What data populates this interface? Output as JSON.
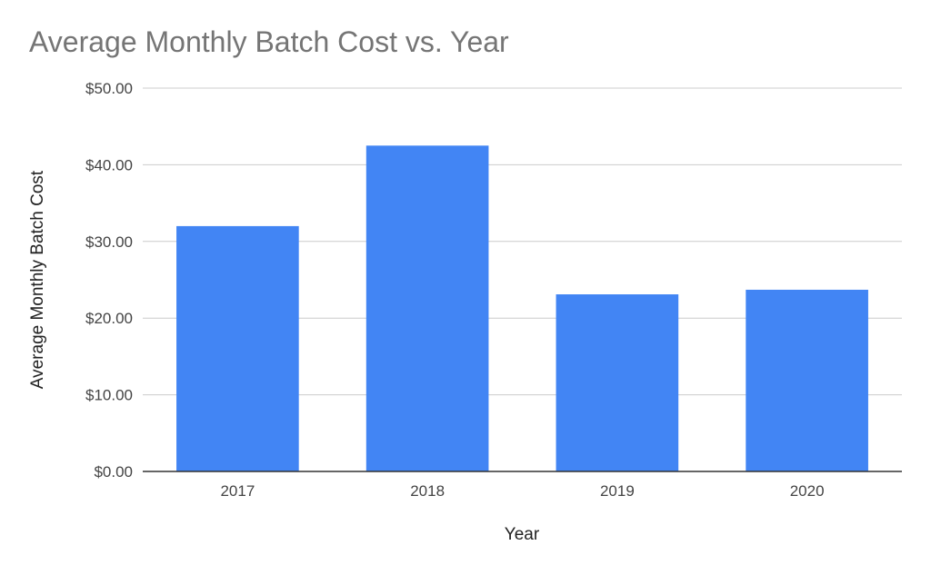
{
  "chart_data": {
    "type": "bar",
    "title": "Average Monthly Batch Cost vs. Year",
    "xlabel": "Year",
    "ylabel": "Average Monthly Batch Cost",
    "categories": [
      "2017",
      "2018",
      "2019",
      "2020"
    ],
    "values": [
      32.0,
      42.5,
      23.1,
      23.7
    ],
    "ylim": [
      0,
      50
    ],
    "yticks": [
      0,
      10,
      20,
      30,
      40,
      50
    ],
    "ytick_labels": [
      "$0.00",
      "$10.00",
      "$20.00",
      "$30.00",
      "$40.00",
      "$50.00"
    ],
    "grid": true,
    "legend": "none",
    "bar_color": "#4285f4",
    "gridline_color": "#cccccc",
    "axis_color": "#333333",
    "title_color": "#757575",
    "text_color": "#444444"
  }
}
